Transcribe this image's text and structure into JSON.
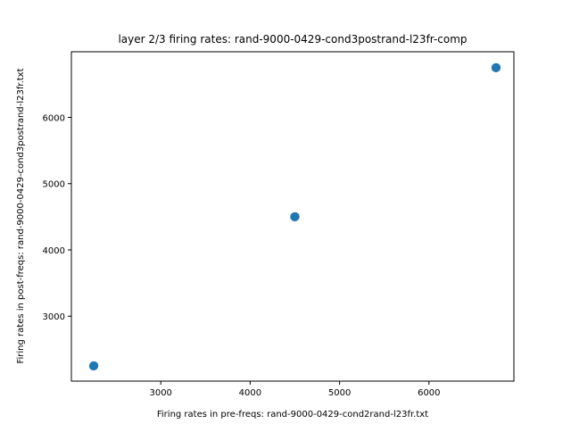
{
  "chart_data": {
    "type": "scatter",
    "title": "layer 2/3 firing rates: rand-9000-0429-cond3postrand-l23fr-comp",
    "xlabel": "Firing rates in pre-freqs: rand-9000-0429-cond2rand-l23fr.txt",
    "ylabel": "Firing rates in post-freqs: rand-9000-0429-cond3postrand-l23fr.txt",
    "xlim": [
      2000,
      6950
    ],
    "ylim": [
      2020,
      6990
    ],
    "xticks": [
      3000,
      4000,
      5000,
      6000
    ],
    "yticks": [
      3000,
      4000,
      5000,
      6000
    ],
    "xtick_labels": [
      "3000",
      "4000",
      "5000",
      "6000"
    ],
    "ytick_labels": [
      "3000",
      "4000",
      "5000",
      "6000"
    ],
    "grid": false,
    "legend": "none",
    "marker_color": "#1f77b4",
    "points": [
      {
        "x": 2250,
        "y": 2250
      },
      {
        "x": 2252,
        "y": 2253
      },
      {
        "x": 2248,
        "y": 2247
      },
      {
        "x": 4500,
        "y": 4500
      },
      {
        "x": 4503,
        "y": 4502
      },
      {
        "x": 4497,
        "y": 4499
      },
      {
        "x": 6750,
        "y": 6750
      },
      {
        "x": 6752,
        "y": 6751
      },
      {
        "x": 6748,
        "y": 6749
      }
    ]
  }
}
